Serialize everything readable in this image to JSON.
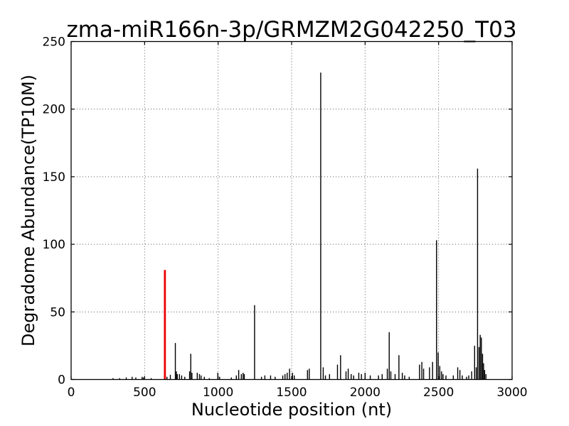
{
  "figure": {
    "background": "#ffffff"
  },
  "chart_data": {
    "type": "bar",
    "title": "zma-miR166n-3p/GRMZM2G042250_T03",
    "xlabel": "Nucleotide position (nt)",
    "ylabel": "Degradome Abundance(TP10M)",
    "xlim": [
      0,
      3000
    ],
    "ylim": [
      0,
      250
    ],
    "x_ticks": [
      0,
      500,
      1000,
      1500,
      2000,
      2500,
      3000
    ],
    "y_ticks": [
      0,
      50,
      100,
      150,
      200,
      250
    ],
    "grid": "dotted lines at major ticks, both axes",
    "legend": "none",
    "colors": {
      "bar": "#000000",
      "highlight": "#ee0000",
      "axes": "#000000",
      "grid": "#444444"
    },
    "highlight_bar": {
      "x": 638,
      "value": 81
    },
    "bars": [
      [
        285,
        1
      ],
      [
        330,
        1
      ],
      [
        375,
        1.5
      ],
      [
        415,
        2
      ],
      [
        440,
        1.5
      ],
      [
        483,
        2
      ],
      [
        492,
        1.5
      ],
      [
        545,
        1
      ],
      [
        652,
        2
      ],
      [
        675,
        3.5
      ],
      [
        709,
        27
      ],
      [
        716,
        6
      ],
      [
        722,
        4
      ],
      [
        737,
        4
      ],
      [
        752,
        3
      ],
      [
        773,
        2
      ],
      [
        806,
        6
      ],
      [
        814,
        19
      ],
      [
        822,
        5
      ],
      [
        858,
        5
      ],
      [
        873,
        4
      ],
      [
        884,
        3
      ],
      [
        906,
        2
      ],
      [
        940,
        1
      ],
      [
        998,
        5
      ],
      [
        1010,
        2
      ],
      [
        1090,
        1.5
      ],
      [
        1124,
        3
      ],
      [
        1140,
        7
      ],
      [
        1158,
        4
      ],
      [
        1170,
        5
      ],
      [
        1178,
        4
      ],
      [
        1248,
        55
      ],
      [
        1295,
        2
      ],
      [
        1318,
        3
      ],
      [
        1357,
        3
      ],
      [
        1388,
        2
      ],
      [
        1440,
        3
      ],
      [
        1455,
        4
      ],
      [
        1470,
        5
      ],
      [
        1486,
        8
      ],
      [
        1506,
        5
      ],
      [
        1518,
        3
      ],
      [
        1608,
        7
      ],
      [
        1620,
        8
      ],
      [
        1698,
        227
      ],
      [
        1715,
        9
      ],
      [
        1730,
        3
      ],
      [
        1758,
        4
      ],
      [
        1812,
        11
      ],
      [
        1833,
        18
      ],
      [
        1870,
        6
      ],
      [
        1885,
        8
      ],
      [
        1905,
        4
      ],
      [
        1922,
        3
      ],
      [
        1957,
        5
      ],
      [
        1975,
        4
      ],
      [
        2000,
        5
      ],
      [
        2035,
        3
      ],
      [
        2091,
        3
      ],
      [
        2116,
        4
      ],
      [
        2151,
        8
      ],
      [
        2164,
        35
      ],
      [
        2175,
        6
      ],
      [
        2204,
        4
      ],
      [
        2230,
        18
      ],
      [
        2253,
        5
      ],
      [
        2269,
        3
      ],
      [
        2300,
        2
      ],
      [
        2370,
        11
      ],
      [
        2386,
        13
      ],
      [
        2398,
        8
      ],
      [
        2438,
        9
      ],
      [
        2459,
        13
      ],
      [
        2486,
        103
      ],
      [
        2497,
        20
      ],
      [
        2508,
        10
      ],
      [
        2520,
        6
      ],
      [
        2530,
        4
      ],
      [
        2550,
        3
      ],
      [
        2600,
        3
      ],
      [
        2630,
        9
      ],
      [
        2645,
        7
      ],
      [
        2661,
        3
      ],
      [
        2690,
        2
      ],
      [
        2705,
        3
      ],
      [
        2725,
        6
      ],
      [
        2745,
        25
      ],
      [
        2756,
        9
      ],
      [
        2765,
        156
      ],
      [
        2775,
        24
      ],
      [
        2783,
        33
      ],
      [
        2791,
        31
      ],
      [
        2799,
        19
      ],
      [
        2806,
        12
      ],
      [
        2813,
        7
      ],
      [
        2822,
        4
      ]
    ]
  }
}
